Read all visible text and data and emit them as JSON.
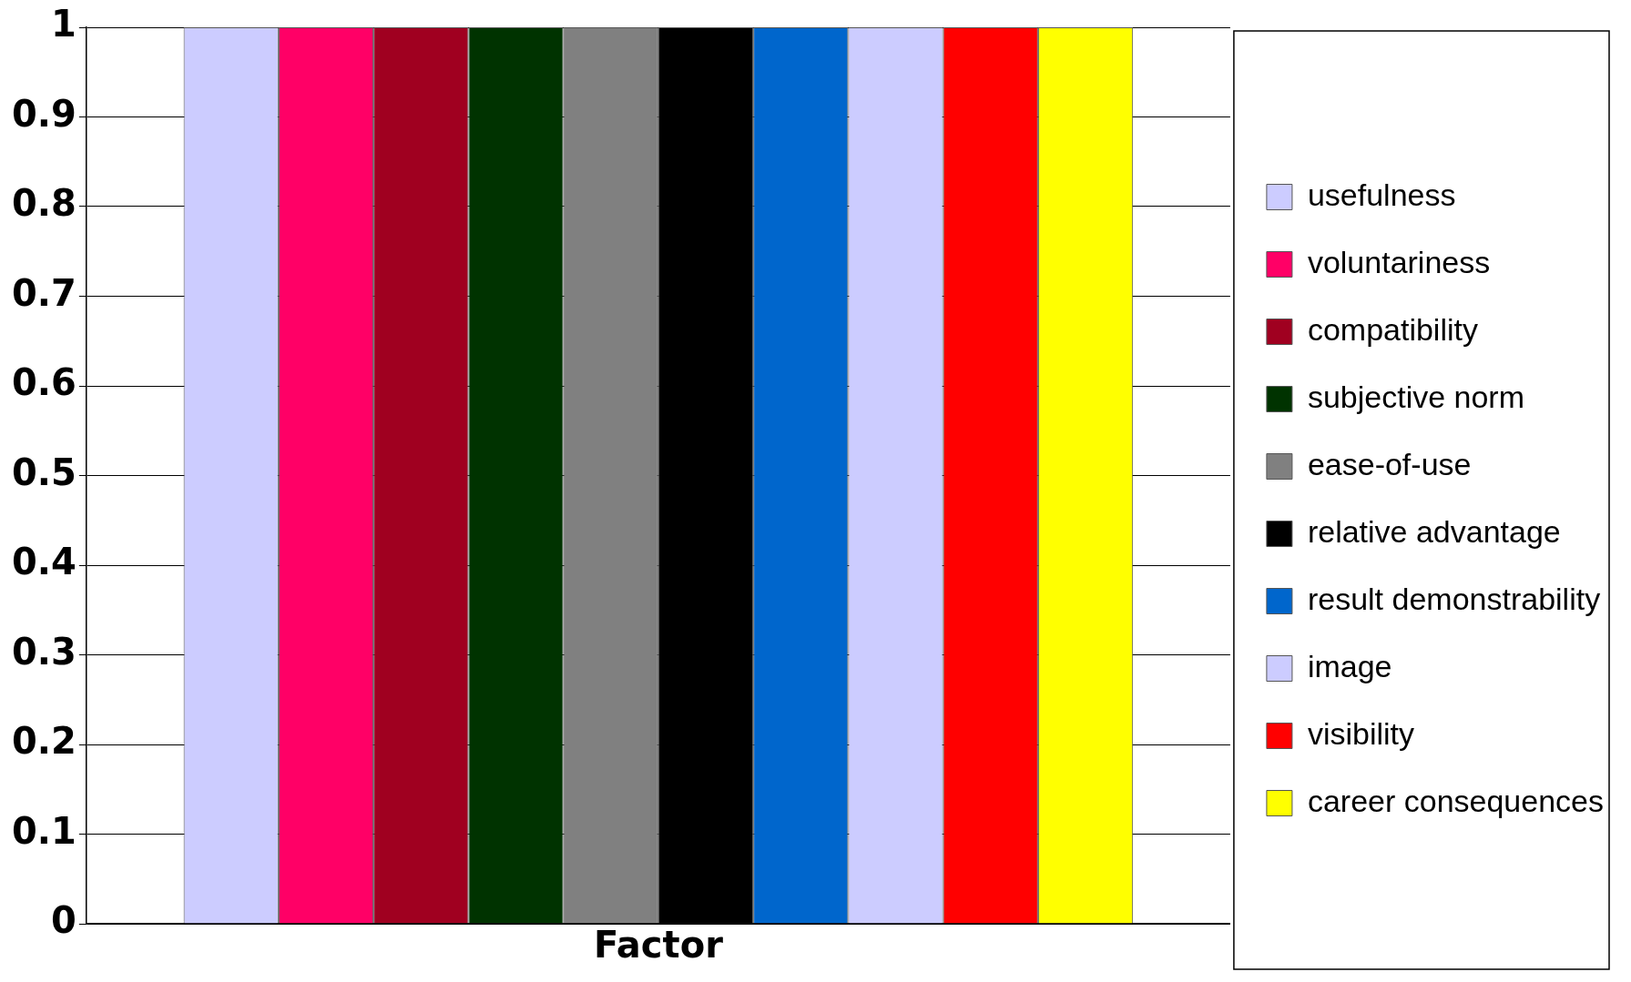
{
  "chart_data": {
    "type": "bar",
    "categories": [
      "Factor"
    ],
    "series": [
      {
        "name": "usefulness",
        "color": "#ccccff",
        "values": [
          1
        ]
      },
      {
        "name": "voluntariness",
        "color": "#ff0066",
        "values": [
          1
        ]
      },
      {
        "name": "compatibility",
        "color": "#a00020",
        "values": [
          1
        ]
      },
      {
        "name": "subjective norm",
        "color": "#003300",
        "values": [
          1
        ]
      },
      {
        "name": "ease-of-use",
        "color": "#808080",
        "values": [
          1
        ]
      },
      {
        "name": "relative advantage",
        "color": "#000000",
        "values": [
          1
        ]
      },
      {
        "name": "result demonstrability",
        "color": "#0066cc",
        "values": [
          1
        ]
      },
      {
        "name": "image",
        "color": "#ccccff",
        "values": [
          1
        ]
      },
      {
        "name": "visibility",
        "color": "#ff0000",
        "values": [
          1
        ]
      },
      {
        "name": "career consequences",
        "color": "#ffff00",
        "values": [
          1
        ]
      }
    ],
    "ylim": [
      0,
      1
    ],
    "yticks": [
      0,
      0.1,
      0.2,
      0.3,
      0.4,
      0.5,
      0.6,
      0.7,
      0.8,
      0.9,
      1
    ],
    "grid": "y",
    "legend": "right"
  }
}
